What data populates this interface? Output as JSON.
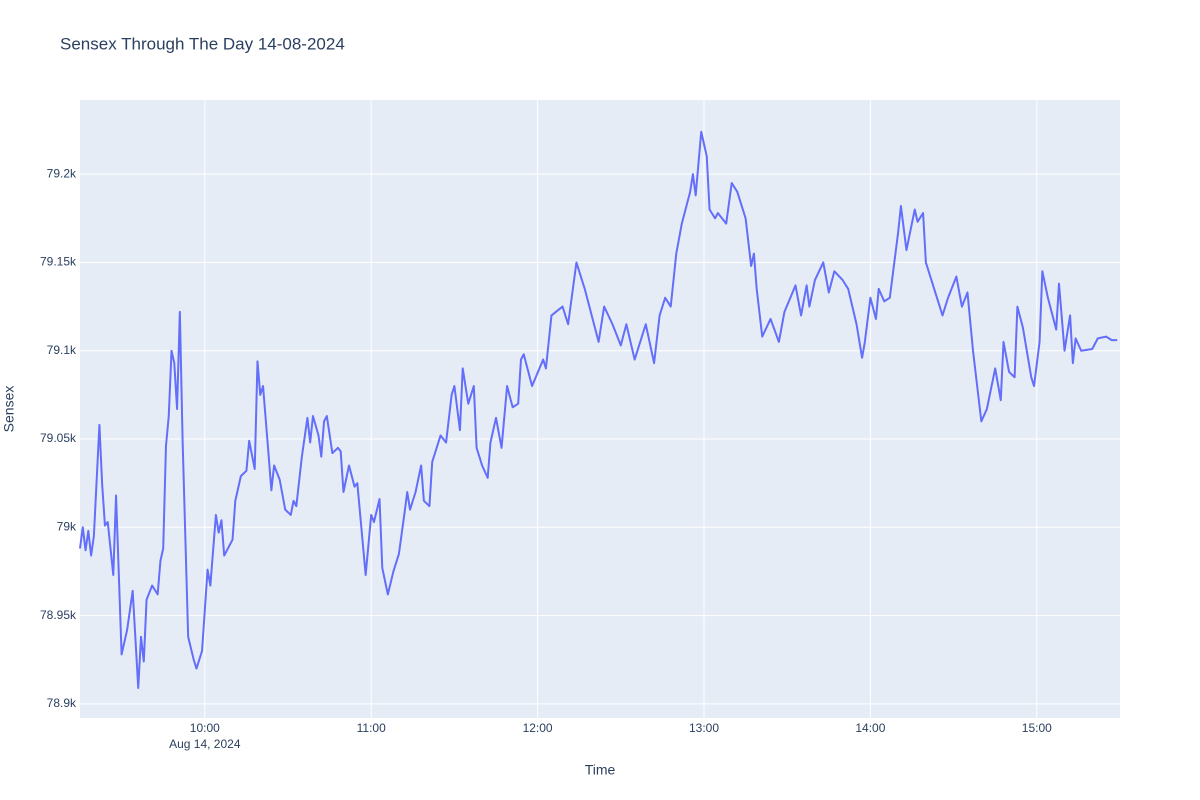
{
  "chart_data": {
    "type": "line",
    "title": "Sensex Through The Day 14-08-2024",
    "x_axis_label": "Time",
    "y_axis_label": "Sensex",
    "x_date_label": "Aug 14, 2024",
    "color": "#636efa",
    "grid": true,
    "xlim": [
      "2024-08-14 09:15",
      "2024-08-14 15:30"
    ],
    "xticks": [
      {
        "value": "2024-08-14 10:00",
        "label": "10:00"
      },
      {
        "value": "2024-08-14 11:00",
        "label": "11:00"
      },
      {
        "value": "2024-08-14 12:00",
        "label": "12:00"
      },
      {
        "value": "2024-08-14 13:00",
        "label": "13:00"
      },
      {
        "value": "2024-08-14 14:00",
        "label": "14:00"
      },
      {
        "value": "2024-08-14 15:00",
        "label": "15:00"
      }
    ],
    "ylim": [
      78892,
      79242
    ],
    "yticks": [
      {
        "value": 78900,
        "label": "78.9k"
      },
      {
        "value": 78950,
        "label": "78.95k"
      },
      {
        "value": 79000,
        "label": "79k"
      },
      {
        "value": 79050,
        "label": "79.05k"
      },
      {
        "value": 79100,
        "label": "79.1k"
      },
      {
        "value": 79150,
        "label": "79.15k"
      },
      {
        "value": 79200,
        "label": "79.2k"
      }
    ],
    "x": [
      "2024-08-14 09:15",
      "2024-08-14 09:16",
      "2024-08-14 09:17",
      "2024-08-14 09:18",
      "2024-08-14 09:19",
      "2024-08-14 09:20",
      "2024-08-14 09:22",
      "2024-08-14 09:23",
      "2024-08-14 09:24",
      "2024-08-14 09:25",
      "2024-08-14 09:27",
      "2024-08-14 09:28",
      "2024-08-14 09:30",
      "2024-08-14 09:32",
      "2024-08-14 09:34",
      "2024-08-14 09:36",
      "2024-08-14 09:37",
      "2024-08-14 09:38",
      "2024-08-14 09:39",
      "2024-08-14 09:41",
      "2024-08-14 09:43",
      "2024-08-14 09:44",
      "2024-08-14 09:45",
      "2024-08-14 09:46",
      "2024-08-14 09:47",
      "2024-08-14 09:48",
      "2024-08-14 09:49",
      "2024-08-14 09:50",
      "2024-08-14 09:51",
      "2024-08-14 09:52",
      "2024-08-14 09:54",
      "2024-08-14 09:56",
      "2024-08-14 09:57",
      "2024-08-14 09:59",
      "2024-08-14 10:01",
      "2024-08-14 10:02",
      "2024-08-14 10:04",
      "2024-08-14 10:05",
      "2024-08-14 10:06",
      "2024-08-14 10:07",
      "2024-08-14 10:09",
      "2024-08-14 10:10",
      "2024-08-14 10:11",
      "2024-08-14 10:13",
      "2024-08-14 10:15",
      "2024-08-14 10:16",
      "2024-08-14 10:18",
      "2024-08-14 10:19",
      "2024-08-14 10:20",
      "2024-08-14 10:21",
      "2024-08-14 10:23",
      "2024-08-14 10:24",
      "2024-08-14 10:25",
      "2024-08-14 10:27",
      "2024-08-14 10:29",
      "2024-08-14 10:31",
      "2024-08-14 10:32",
      "2024-08-14 10:33",
      "2024-08-14 10:35",
      "2024-08-14 10:37",
      "2024-08-14 10:38",
      "2024-08-14 10:39",
      "2024-08-14 10:41",
      "2024-08-14 10:42",
      "2024-08-14 10:43",
      "2024-08-14 10:44",
      "2024-08-14 10:46",
      "2024-08-14 10:48",
      "2024-08-14 10:49",
      "2024-08-14 10:50",
      "2024-08-14 10:52",
      "2024-08-14 10:54",
      "2024-08-14 10:55",
      "2024-08-14 10:58",
      "2024-08-14 11:00",
      "2024-08-14 11:01",
      "2024-08-14 11:03",
      "2024-08-14 11:04",
      "2024-08-14 11:06",
      "2024-08-14 11:08",
      "2024-08-14 11:10",
      "2024-08-14 11:12",
      "2024-08-14 11:13",
      "2024-08-14 11:14",
      "2024-08-14 11:16",
      "2024-08-14 11:18",
      "2024-08-14 11:19",
      "2024-08-14 11:21",
      "2024-08-14 11:22",
      "2024-08-14 11:25",
      "2024-08-14 11:27",
      "2024-08-14 11:29",
      "2024-08-14 11:30",
      "2024-08-14 11:32",
      "2024-08-14 11:33",
      "2024-08-14 11:35",
      "2024-08-14 11:37",
      "2024-08-14 11:38",
      "2024-08-14 11:40",
      "2024-08-14 11:42",
      "2024-08-14 11:43",
      "2024-08-14 11:45",
      "2024-08-14 11:47",
      "2024-08-14 11:49",
      "2024-08-14 11:51",
      "2024-08-14 11:53",
      "2024-08-14 11:54",
      "2024-08-14 11:55",
      "2024-08-14 11:58",
      "2024-08-14 12:02",
      "2024-08-14 12:03",
      "2024-08-14 12:05",
      "2024-08-14 12:09",
      "2024-08-14 12:11",
      "2024-08-14 12:14",
      "2024-08-14 12:17",
      "2024-08-14 12:22",
      "2024-08-14 12:24",
      "2024-08-14 12:27",
      "2024-08-14 12:30",
      "2024-08-14 12:32",
      "2024-08-14 12:35",
      "2024-08-14 12:39",
      "2024-08-14 12:42",
      "2024-08-14 12:44",
      "2024-08-14 12:46",
      "2024-08-14 12:48",
      "2024-08-14 12:50",
      "2024-08-14 12:52",
      "2024-08-14 12:55",
      "2024-08-14 12:56",
      "2024-08-14 12:57",
      "2024-08-14 12:59",
      "2024-08-14 13:01",
      "2024-08-14 13:02",
      "2024-08-14 13:04",
      "2024-08-14 13:05",
      "2024-08-14 13:08",
      "2024-08-14 13:10",
      "2024-08-14 13:12",
      "2024-08-14 13:15",
      "2024-08-14 13:17",
      "2024-08-14 13:18",
      "2024-08-14 13:19",
      "2024-08-14 13:21",
      "2024-08-14 13:24",
      "2024-08-14 13:27",
      "2024-08-14 13:29",
      "2024-08-14 13:33",
      "2024-08-14 13:35",
      "2024-08-14 13:37",
      "2024-08-14 13:38",
      "2024-08-14 13:40",
      "2024-08-14 13:43",
      "2024-08-14 13:45",
      "2024-08-14 13:47",
      "2024-08-14 13:50",
      "2024-08-14 13:52",
      "2024-08-14 13:55",
      "2024-08-14 13:57",
      "2024-08-14 13:58",
      "2024-08-14 14:00",
      "2024-08-14 14:02",
      "2024-08-14 14:03",
      "2024-08-14 14:05",
      "2024-08-14 14:07",
      "2024-08-14 14:10",
      "2024-08-14 14:11",
      "2024-08-14 14:13",
      "2024-08-14 14:16",
      "2024-08-14 14:17",
      "2024-08-14 14:19",
      "2024-08-14 14:20",
      "2024-08-14 14:23",
      "2024-08-14 14:26",
      "2024-08-14 14:28",
      "2024-08-14 14:31",
      "2024-08-14 14:33",
      "2024-08-14 14:35",
      "2024-08-14 14:37",
      "2024-08-14 14:40",
      "2024-08-14 14:42",
      "2024-08-14 14:45",
      "2024-08-14 14:47",
      "2024-08-14 14:48",
      "2024-08-14 14:50",
      "2024-08-14 14:52",
      "2024-08-14 14:53",
      "2024-08-14 14:55",
      "2024-08-14 14:58",
      "2024-08-14 14:59",
      "2024-08-14 15:01",
      "2024-08-14 15:02",
      "2024-08-14 15:04",
      "2024-08-14 15:07",
      "2024-08-14 15:08",
      "2024-08-14 15:10",
      "2024-08-14 15:12",
      "2024-08-14 15:13",
      "2024-08-14 15:14",
      "2024-08-14 15:16",
      "2024-08-14 15:20",
      "2024-08-14 15:22",
      "2024-08-14 15:25",
      "2024-08-14 15:27",
      "2024-08-14 15:29"
    ],
    "values": [
      78988,
      79000,
      78987,
      78998,
      78984,
      78995,
      79058,
      79024,
      79001,
      79003,
      78973,
      79018,
      78928,
      78942,
      78964,
      78909,
      78938,
      78924,
      78959,
      78967,
      78962,
      78981,
      78988,
      79046,
      79063,
      79100,
      79093,
      79067,
      79122,
      79049,
      78938,
      78925,
      78920,
      78930,
      78976,
      78967,
      79007,
      78997,
      79004,
      78984,
      78990,
      78993,
      79015,
      79029,
      79032,
      79049,
      79033,
      79094,
      79075,
      79080,
      79041,
      79021,
      79035,
      79027,
      79010,
      79007,
      79015,
      79012,
      79040,
      79062,
      79048,
      79063,
      79052,
      79040,
      79060,
      79063,
      79042,
      79045,
      79043,
      79020,
      79035,
      79023,
      79025,
      78973,
      79007,
      79003,
      79016,
      78977,
      78962,
      78975,
      78985,
      79008,
      79020,
      79010,
      79020,
      79035,
      79015,
      79012,
      79037,
      79052,
      79048,
      79075,
      79080,
      79055,
      79090,
      79070,
      79080,
      79045,
      79035,
      79028,
      79048,
      79062,
      79045,
      79080,
      79068,
      79070,
      79095,
      79098,
      79080,
      79095,
      79090,
      79120,
      79125,
      79115,
      79150,
      79135,
      79105,
      79125,
      79115,
      79103,
      79115,
      79095,
      79115,
      79093,
      79120,
      79130,
      79125,
      79155,
      79172,
      79190,
      79200,
      79188,
      79224,
      79210,
      79180,
      79175,
      79178,
      79172,
      79195,
      79190,
      79175,
      79148,
      79155,
      79135,
      79108,
      79118,
      79105,
      79122,
      79137,
      79120,
      79137,
      79125,
      79140,
      79150,
      79133,
      79145,
      79140,
      79135,
      79115,
      79096,
      79105,
      79130,
      79118,
      79135,
      79128,
      79130,
      79167,
      79182,
      79157,
      79180,
      79173,
      79178,
      79150,
      79135,
      79120,
      79130,
      79142,
      79125,
      79133,
      79100,
      79060,
      79067,
      79090,
      79072,
      79105,
      79088,
      79085,
      79125,
      79113,
      79085,
      79080,
      79105,
      79145,
      79130,
      79112,
      79138,
      79100,
      79120,
      79093,
      79107,
      79100,
      79101,
      79107,
      79108,
      79106,
      79106
    ]
  }
}
